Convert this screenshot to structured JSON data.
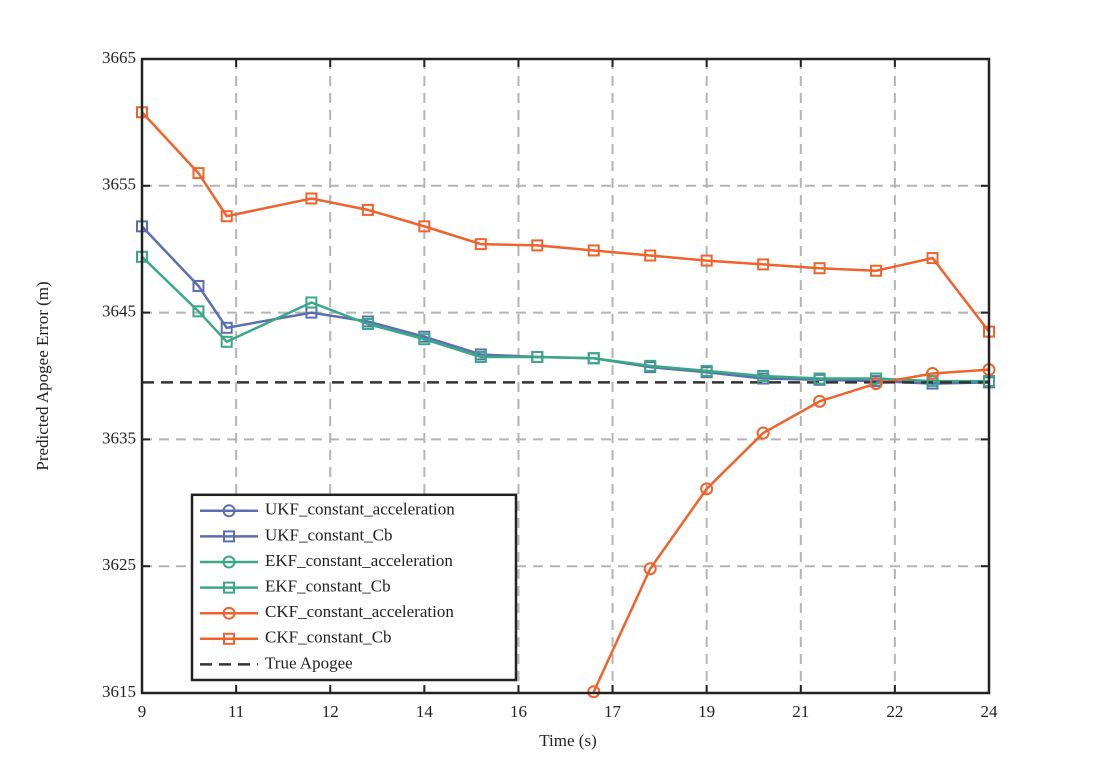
{
  "chart_data": {
    "type": "line",
    "xlabel": "Time (s)",
    "ylabel": "Predicted Apogee Error (m)",
    "x": [
      9,
      10,
      10.5,
      12,
      13,
      14,
      15,
      16,
      17,
      18,
      19,
      20,
      21,
      22,
      23,
      24
    ],
    "xlim": [
      9,
      24
    ],
    "xticks": [
      {
        "value": 9,
        "label": "9"
      },
      {
        "value": 10.667,
        "label": "11"
      },
      {
        "value": 12.333,
        "label": "12"
      },
      {
        "value": 14,
        "label": "14"
      },
      {
        "value": 15.667,
        "label": "16"
      },
      {
        "value": 17.333,
        "label": "17"
      },
      {
        "value": 19,
        "label": "19"
      },
      {
        "value": 20.667,
        "label": "21"
      },
      {
        "value": 22.333,
        "label": "22"
      },
      {
        "value": 24,
        "label": "24"
      }
    ],
    "ylim": [
      3615,
      3665
    ],
    "yticks": [
      3615,
      3625,
      3635,
      3645,
      3655,
      3665
    ],
    "grid": true,
    "legend": "lower left",
    "series": [
      {
        "name": "UKF_constant_acceleration",
        "color": "#5b6fb0",
        "marker": "circle",
        "values": [
          null,
          null,
          null,
          null,
          null,
          null,
          null,
          null,
          null,
          null,
          null,
          null,
          null,
          null,
          null,
          null
        ]
      },
      {
        "name": "UKF_constant_Cb",
        "color": "#5b6fb0",
        "marker": "square",
        "values": [
          3651.8,
          3647.1,
          3643.8,
          3645.0,
          3644.3,
          3643.1,
          3641.7,
          3641.5,
          3641.4,
          3640.7,
          3640.3,
          3639.8,
          3639.7,
          3639.6,
          3639.4,
          3639.5
        ]
      },
      {
        "name": "EKF_constant_acceleration",
        "color": "#3aa886",
        "marker": "circle",
        "values": [
          null,
          null,
          null,
          null,
          null,
          null,
          null,
          null,
          null,
          null,
          null,
          null,
          null,
          null,
          null,
          null
        ]
      },
      {
        "name": "EKF_constant_Cb",
        "color": "#3aa886",
        "marker": "square",
        "values": [
          3649.4,
          3645.1,
          3642.7,
          3645.8,
          3644.1,
          3642.9,
          3641.5,
          3641.5,
          3641.4,
          3640.8,
          3640.4,
          3640.0,
          3639.8,
          3639.8,
          3639.6,
          3639.6
        ]
      },
      {
        "name": "CKF_constant_acceleration",
        "color": "#f0622c",
        "marker": "circle",
        "values": [
          null,
          null,
          null,
          null,
          null,
          null,
          null,
          null,
          3615.1,
          3624.8,
          3631.1,
          3635.5,
          3638.0,
          3639.4,
          3640.2,
          3640.5
        ]
      },
      {
        "name": "CKF_constant_Cb",
        "color": "#f0622c",
        "marker": "square",
        "values": [
          3660.8,
          3656.0,
          3652.6,
          3654.0,
          3653.1,
          3651.8,
          3650.4,
          3650.3,
          3649.9,
          3649.5,
          3649.1,
          3648.8,
          3648.5,
          3648.3,
          3649.3,
          3643.5
        ]
      },
      {
        "name": "True Apogee",
        "color": "#333333",
        "marker": "none",
        "dashed": true,
        "values": [
          3639.5,
          3639.5,
          3639.5,
          3639.5,
          3639.5,
          3639.5,
          3639.5,
          3639.5,
          3639.5,
          3639.5,
          3639.5,
          3639.5,
          3639.5,
          3639.5,
          3639.5,
          3639.5
        ]
      }
    ]
  }
}
